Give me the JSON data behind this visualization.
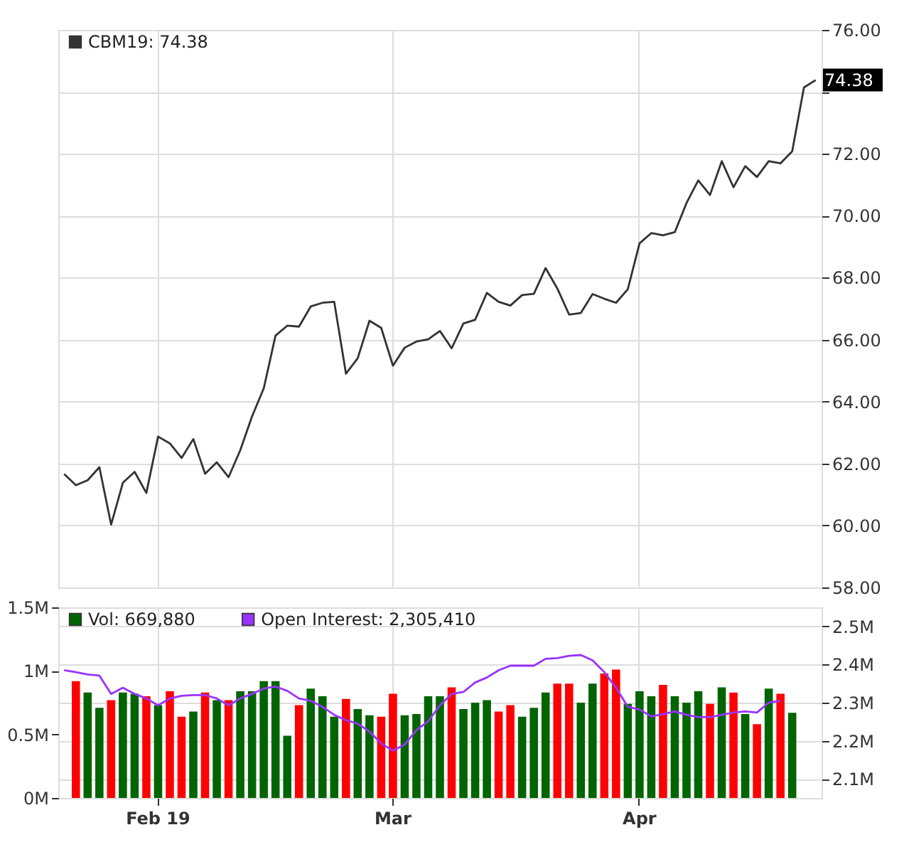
{
  "chart_data": [
    {
      "type": "line",
      "legend": "top left",
      "grid": true,
      "tick_labels": "y",
      "categories": [
        null,
        null,
        null,
        null,
        null,
        null,
        null,
        null,
        null,
        null,
        null,
        null,
        null,
        null,
        null,
        null,
        null,
        null,
        null,
        null,
        null,
        null,
        null,
        null,
        null,
        null,
        null,
        null,
        null,
        null,
        null,
        null,
        null,
        null,
        null,
        null,
        null,
        null,
        null,
        null,
        null,
        null,
        null,
        null,
        null,
        null,
        null,
        null,
        null,
        null,
        null,
        null,
        null,
        null,
        null,
        null,
        null,
        null,
        null,
        null,
        null,
        null,
        null,
        null,
        null
      ],
      "series": [
        {
          "name": "CBM19: 74.38",
          "color": "#333333",
          "values": [
            61.66,
            61.3,
            61.46,
            61.88,
            60.03,
            61.38,
            61.73,
            61.05,
            62.87,
            62.65,
            62.18,
            62.79,
            61.67,
            62.04,
            61.56,
            62.43,
            63.52,
            64.43,
            66.13,
            66.45,
            66.42,
            67.07,
            67.19,
            67.22,
            64.9,
            65.4,
            66.61,
            66.38,
            65.16,
            65.74,
            65.94,
            66.01,
            66.28,
            65.72,
            66.52,
            66.64,
            67.51,
            67.22,
            67.1,
            67.44,
            67.48,
            68.31,
            67.65,
            66.81,
            66.86,
            67.47,
            67.32,
            67.19,
            67.63,
            69.11,
            69.44,
            69.37,
            69.47,
            70.41,
            71.14,
            70.67,
            71.76,
            70.92,
            71.6,
            71.25,
            71.76,
            71.69,
            72.08,
            74.14,
            74.38
          ]
        }
      ],
      "ylim": [
        58,
        76
      ],
      "yticks": [
        {
          "value": 58,
          "label": "58.00"
        },
        {
          "value": 60,
          "label": "60.00"
        },
        {
          "value": 62,
          "label": "62.00"
        },
        {
          "value": 64,
          "label": "64.00"
        },
        {
          "value": 66,
          "label": "66.00"
        },
        {
          "value": 68,
          "label": "68.00"
        },
        {
          "value": 70,
          "label": "70.00"
        },
        {
          "value": 72,
          "label": "72.00"
        },
        {
          "value": 74,
          "label": null
        },
        {
          "value": 76,
          "label": "76.00"
        }
      ],
      "annotations": [
        "74.38"
      ]
    },
    {
      "type": "bar",
      "legend": "top left",
      "grid": true,
      "categories": [
        null,
        null,
        null,
        null,
        null,
        null,
        null,
        null,
        "Feb 19",
        null,
        null,
        null,
        null,
        null,
        null,
        null,
        null,
        null,
        null,
        null,
        null,
        null,
        null,
        null,
        null,
        null,
        null,
        null,
        "Mar",
        null,
        null,
        null,
        null,
        null,
        null,
        null,
        null,
        null,
        null,
        null,
        null,
        null,
        null,
        null,
        null,
        null,
        null,
        null,
        null,
        "Apr",
        null,
        null,
        null,
        null,
        null,
        null,
        null,
        null,
        null,
        null,
        null,
        null,
        null,
        null,
        null
      ],
      "series": [
        {
          "name": "Vol: 669,880",
          "color": "#006400",
          "values": [
            null,
            0.92,
            0.83,
            0.71,
            0.77,
            0.83,
            0.82,
            0.8,
            0.73,
            0.84,
            0.64,
            0.68,
            0.83,
            0.77,
            0.77,
            0.84,
            0.84,
            0.92,
            0.92,
            0.49,
            0.73,
            0.86,
            0.8,
            0.64,
            0.78,
            0.7,
            0.65,
            0.64,
            0.82,
            0.65,
            0.66,
            0.8,
            0.8,
            0.87,
            0.7,
            0.75,
            0.77,
            0.68,
            0.73,
            0.64,
            0.71,
            0.83,
            0.9,
            0.9,
            0.75,
            0.9,
            0.98,
            1.01,
            0.74,
            0.84,
            0.8,
            0.89,
            0.8,
            0.75,
            0.84,
            0.74,
            0.87,
            0.83,
            0.66,
            0.58,
            0.86,
            0.82,
            0.67,
            null,
            null
          ],
          "colors": [
            null,
            "#ff0000",
            "#006400",
            "#006400",
            "#ff0000",
            "#006400",
            "#006400",
            "#ff0000",
            "#006400",
            "#ff0000",
            "#ff0000",
            "#006400",
            "#ff0000",
            "#006400",
            "#ff0000",
            "#006400",
            "#006400",
            "#006400",
            "#006400",
            "#006400",
            "#ff0000",
            "#006400",
            "#006400",
            "#006400",
            "#ff0000",
            "#006400",
            "#006400",
            "#ff0000",
            "#ff0000",
            "#006400",
            "#006400",
            "#006400",
            "#006400",
            "#ff0000",
            "#006400",
            "#006400",
            "#006400",
            "#ff0000",
            "#ff0000",
            "#006400",
            "#006400",
            "#006400",
            "#ff0000",
            "#ff0000",
            "#006400",
            "#006400",
            "#ff0000",
            "#ff0000",
            "#006400",
            "#006400",
            "#006400",
            "#ff0000",
            "#006400",
            "#006400",
            "#006400",
            "#ff0000",
            "#006400",
            "#ff0000",
            "#006400",
            "#ff0000",
            "#006400",
            "#ff0000",
            "#006400",
            null,
            null
          ]
        },
        {
          "name": "Open Interest: 2,305,410",
          "color": "#9933ff",
          "type": "line",
          "axis": "y2",
          "values": [
            2.385,
            2.38,
            2.374,
            2.371,
            2.323,
            2.339,
            2.323,
            2.311,
            2.293,
            2.311,
            2.318,
            2.32,
            2.32,
            2.311,
            2.293,
            2.311,
            2.323,
            2.337,
            2.342,
            2.331,
            2.311,
            2.305,
            2.289,
            2.268,
            2.254,
            2.245,
            2.224,
            2.193,
            2.174,
            2.19,
            2.228,
            2.251,
            2.293,
            2.323,
            2.328,
            2.353,
            2.366,
            2.385,
            2.397,
            2.397,
            2.397,
            2.415,
            2.417,
            2.423,
            2.425,
            2.411,
            2.38,
            2.339,
            2.289,
            2.282,
            2.264,
            2.27,
            2.277,
            2.268,
            2.262,
            2.262,
            2.268,
            2.274,
            2.277,
            2.274,
            2.3,
            2.305,
            null,
            null,
            null
          ]
        }
      ],
      "ylim": [
        0,
        1.5
      ],
      "yticks": [
        {
          "value": 0,
          "label": "0M"
        },
        {
          "value": 0.5,
          "label": "0.5M"
        },
        {
          "value": 1,
          "label": "1M"
        },
        {
          "value": 1.5,
          "label": "1.5M"
        }
      ],
      "y2lim": [
        2.05,
        2.55
      ],
      "y2ticks": [
        {
          "value": 2.1,
          "label": "2.1M"
        },
        {
          "value": 2.2,
          "label": "2.2M"
        },
        {
          "value": 2.3,
          "label": "2.3M"
        },
        {
          "value": 2.4,
          "label": "2.4M"
        },
        {
          "value": 2.5,
          "label": "2.5M"
        }
      ]
    }
  ]
}
